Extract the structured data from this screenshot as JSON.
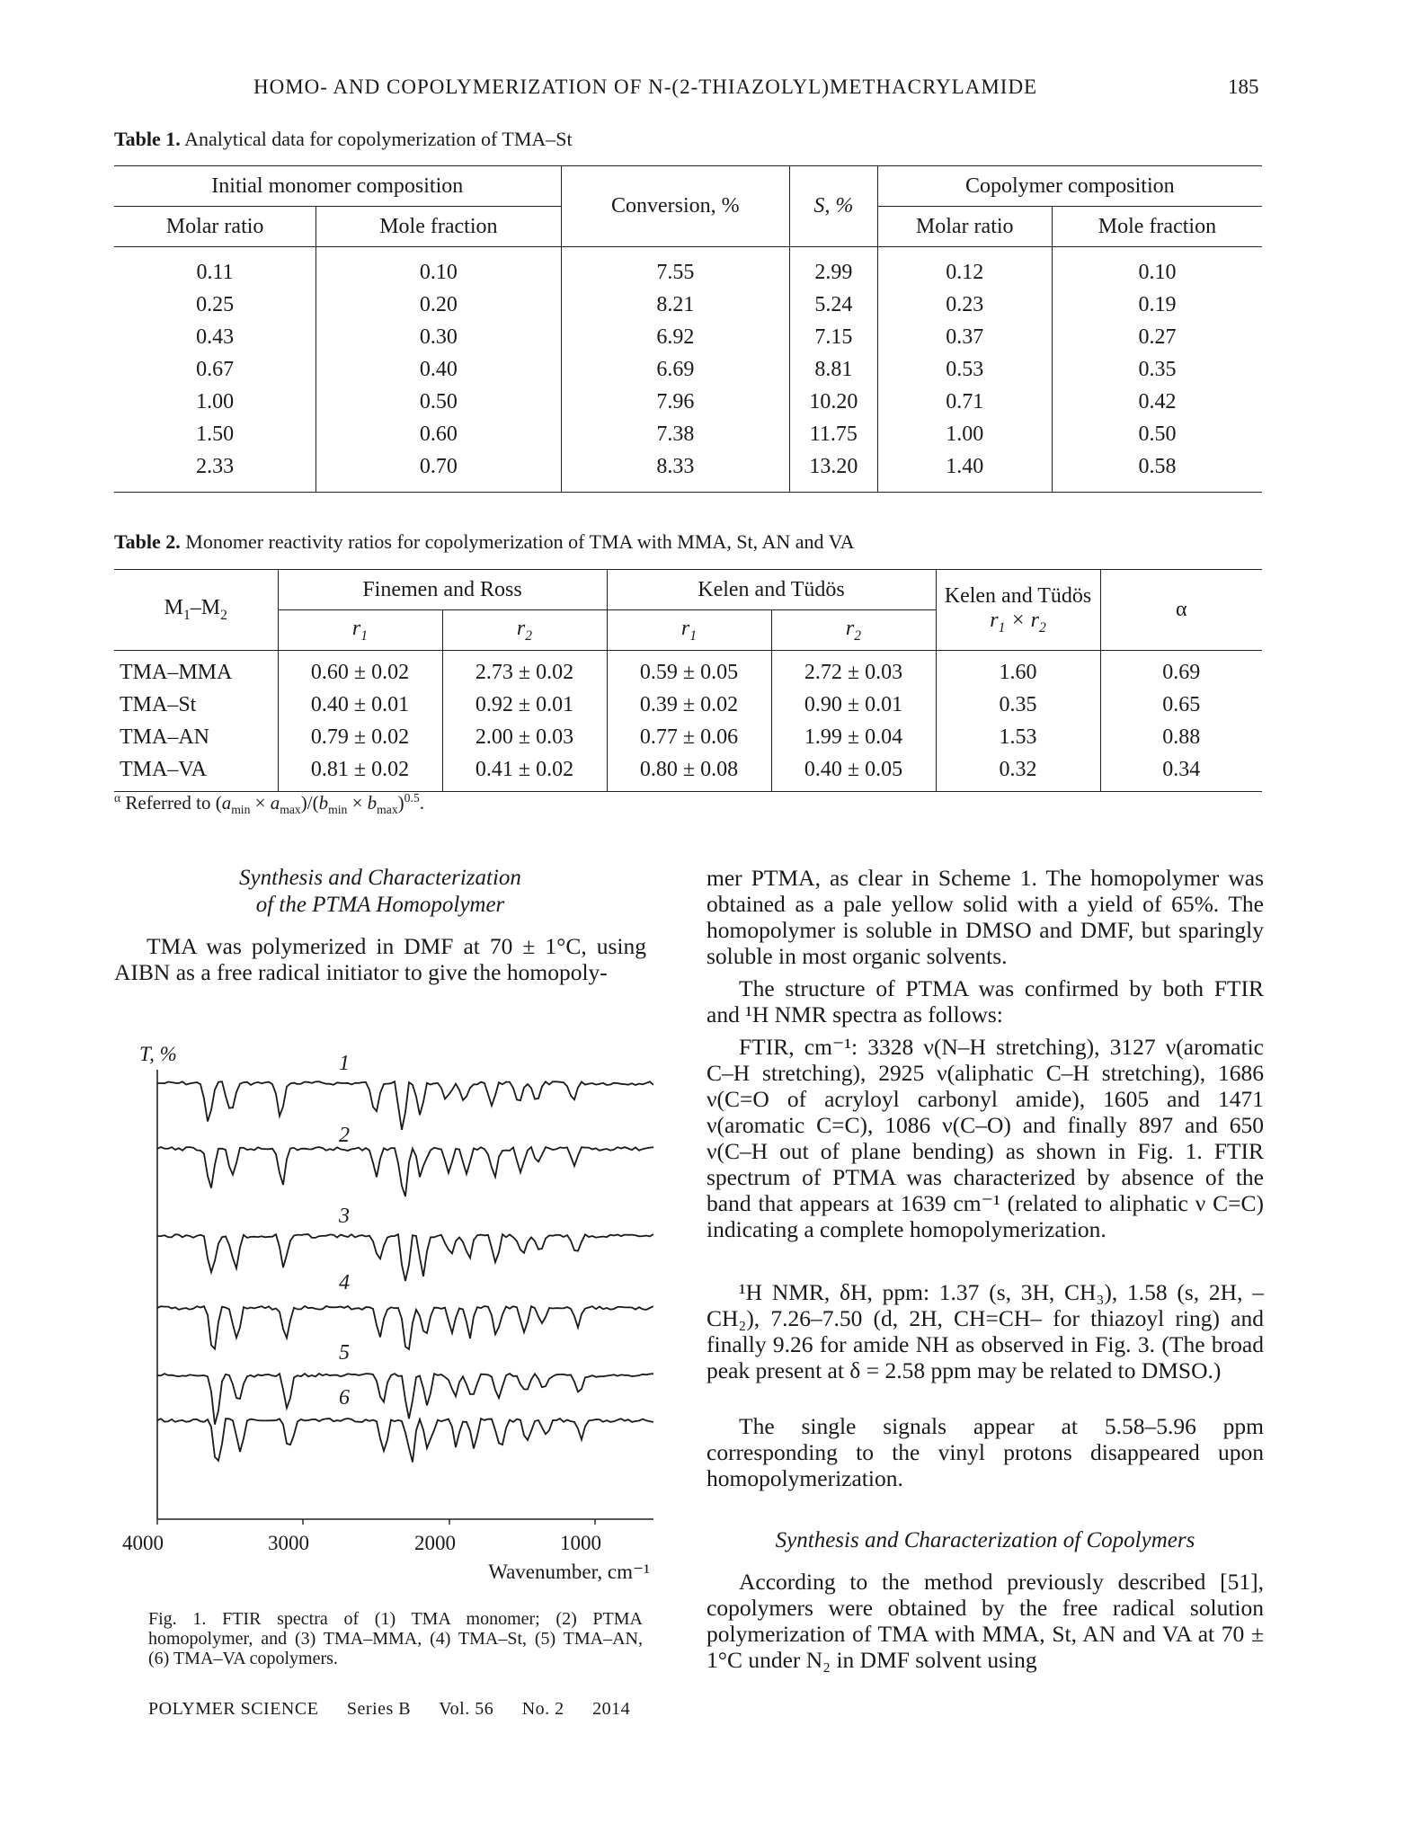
{
  "header": {
    "running_title": "HOMO- AND COPOLYMERIZATION OF N-(2-THIAZOLYL)METHACRYLAMIDE",
    "page_number": "185"
  },
  "table1": {
    "label": "Table 1.",
    "caption": "Analytical data for copolymerization of TMA–St",
    "group_initial": "Initial monomer composition",
    "group_copolymer": "Copolymer composition",
    "col_molar_ratio": "Molar ratio",
    "col_mole_fraction": "Mole fraction",
    "col_conversion": "Conversion, %",
    "col_s": "S, %",
    "rows": [
      [
        "0.11",
        "0.10",
        "7.55",
        "2.99",
        "0.12",
        "0.10"
      ],
      [
        "0.25",
        "0.20",
        "8.21",
        "5.24",
        "0.23",
        "0.19"
      ],
      [
        "0.43",
        "0.30",
        "6.92",
        "7.15",
        "0.37",
        "0.27"
      ],
      [
        "0.67",
        "0.40",
        "6.69",
        "8.81",
        "0.53",
        "0.35"
      ],
      [
        "1.00",
        "0.50",
        "7.96",
        "10.20",
        "0.71",
        "0.42"
      ],
      [
        "1.50",
        "0.60",
        "7.38",
        "11.75",
        "1.00",
        "0.50"
      ],
      [
        "2.33",
        "0.70",
        "8.33",
        "13.20",
        "1.40",
        "0.58"
      ]
    ]
  },
  "table2": {
    "label": "Table 2.",
    "caption": "Monomer reactivity ratios for copolymerization of TMA with MMA, St, AN and VA",
    "col_pair": "M1–M2",
    "group_fr": "Finemen and Ross",
    "group_kt": "Kelen and Tüdös",
    "col_kt_product_title": "Kelen and Tüdös",
    "col_kt_product": "r1 × r2",
    "col_alpha": "α",
    "r1": "r1",
    "r2": "r2",
    "rows": [
      [
        "TMA–MMA",
        "0.60 ± 0.02",
        "2.73 ± 0.02",
        "0.59 ± 0.05",
        "2.72 ± 0.03",
        "1.60",
        "0.69"
      ],
      [
        "TMA–St",
        "0.40 ± 0.01",
        "0.92 ± 0.01",
        "0.39 ± 0.02",
        "0.90 ± 0.01",
        "0.35",
        "0.65"
      ],
      [
        "TMA–AN",
        "0.79 ± 0.02",
        "2.00 ± 0.03",
        "0.77 ± 0.06",
        "1.99 ± 0.04",
        "1.53",
        "0.88"
      ],
      [
        "TMA–VA",
        "0.81 ± 0.02",
        "0.41 ± 0.02",
        "0.80 ± 0.08",
        "0.40 ± 0.05",
        "0.32",
        "0.34"
      ]
    ],
    "footnote": "α Referred to (amin × amax)/(bmin × bmax)0.5."
  },
  "left_column": {
    "heading_line1": "Synthesis and Characterization",
    "heading_line2": "of the PTMA Homopolymer",
    "para1": "TMA was polymerized in DMF at 70 ± 1°C, using AIBN as a free radical initiator to give the homopoly-"
  },
  "right_column": {
    "para1": "mer PTMA, as clear in Scheme 1. The homopolymer was obtained as a pale yellow solid with a yield of 65%. The homopolymer is soluble in DMSO and DMF, but sparingly soluble in most organic solvents.",
    "para2": "The structure of PTMA was confirmed by both FTIR and ¹H NMR spectra as follows:",
    "para3": "FTIR, cm⁻¹: 3328 ν(N–H stretching), 3127 ν(aromatic C–H stretching), 2925 ν(aliphatic C–H stretching), 1686 ν(C=O of acryloyl carbonyl amide), 1605 and 1471 ν(aromatic C=C), 1086 ν(C–O) and finally 897 and 650 ν(C–H out of plane bending) as shown in Fig. 1. FTIR spectrum of PTMA was characterized by absence of the band that appears at 1639 cm⁻¹ (related to aliphatic ν C=C) indicating a complete homopolymerization.",
    "para4": "¹H NMR, δH, ppm: 1.37 (s, 3H, CH₃), 1.58 (s, 2H, –CH₂), 7.26–7.50 (d, 2H, CH=CH– for thiazoyl ring) and finally 9.26 for amide NH as observed in Fig. 3. (The broad peak present at δ = 2.58 ppm may be related to DMSO.)",
    "para5": "The single signals appear at 5.58–5.96 ppm corresponding to the vinyl protons disappeared upon homopolymerization.",
    "heading2": "Synthesis and Characterization of Copolymers",
    "para6": "According to the method previously described [51], copolymers were obtained by the free radical solution polymerization of TMA with MMA, St, AN and VA at 70 ± 1°C under N₂ in DMF solvent using"
  },
  "figure1": {
    "y_label": "T, %",
    "x_label": "Wavenumber, cm⁻¹",
    "x_ticks": [
      "4000",
      "3000",
      "2000",
      "1000"
    ],
    "curve_labels": [
      "1",
      "2",
      "3",
      "4",
      "5",
      "6"
    ],
    "caption": "Fig. 1. FTIR spectra of (1) TMA monomer; (2) PTMA homopolymer, and (3) TMA–MMA, (4) TMA–St, (5) TMA–AN, (6) TMA–VA copolymers."
  },
  "footer": {
    "journal": "POLYMER SCIENCE",
    "series": "Series B",
    "volume": "Vol. 56",
    "number": "No. 2",
    "year": "2014"
  }
}
